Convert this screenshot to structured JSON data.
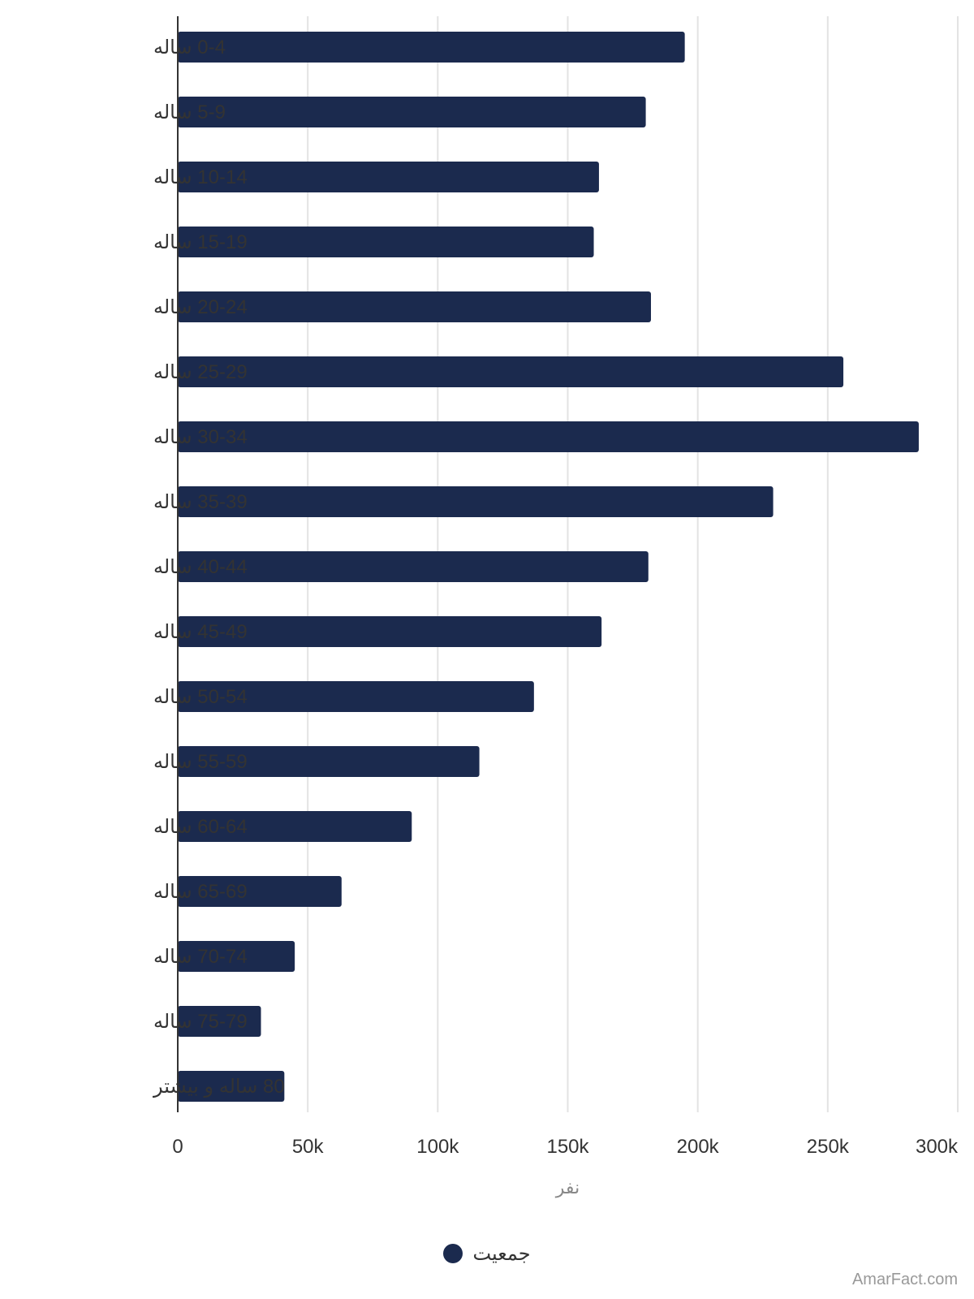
{
  "chart_data": {
    "type": "bar",
    "orientation": "horizontal",
    "categories": [
      "0-4 ساله",
      "5-9 ساله",
      "10-14 ساله",
      "15-19 ساله",
      "20-24 ساله",
      "25-29 ساله",
      "30-34 ساله",
      "35-39 ساله",
      "40-44 ساله",
      "45-49 ساله",
      "50-54 ساله",
      "55-59 ساله",
      "60-64 ساله",
      "65-69 ساله",
      "70-74 ساله",
      "75-79 ساله",
      "80 ساله و بیشتر"
    ],
    "series": [
      {
        "name": "جمعیت",
        "color": "#1b2a4e",
        "values": [
          195000,
          180000,
          162000,
          160000,
          182000,
          256000,
          285000,
          229000,
          181000,
          163000,
          137000,
          116000,
          90000,
          63000,
          45000,
          32000,
          41000
        ]
      }
    ],
    "xlabel": "نفر",
    "xlim": [
      0,
      300000
    ],
    "xticks": [
      0,
      50000,
      100000,
      150000,
      200000,
      250000,
      300000
    ],
    "xtick_labels": [
      "0",
      "50k",
      "100k",
      "150k",
      "200k",
      "250k",
      "300k"
    ],
    "grid": true,
    "legend_position": "bottom"
  },
  "watermark": "AmarFact.com"
}
